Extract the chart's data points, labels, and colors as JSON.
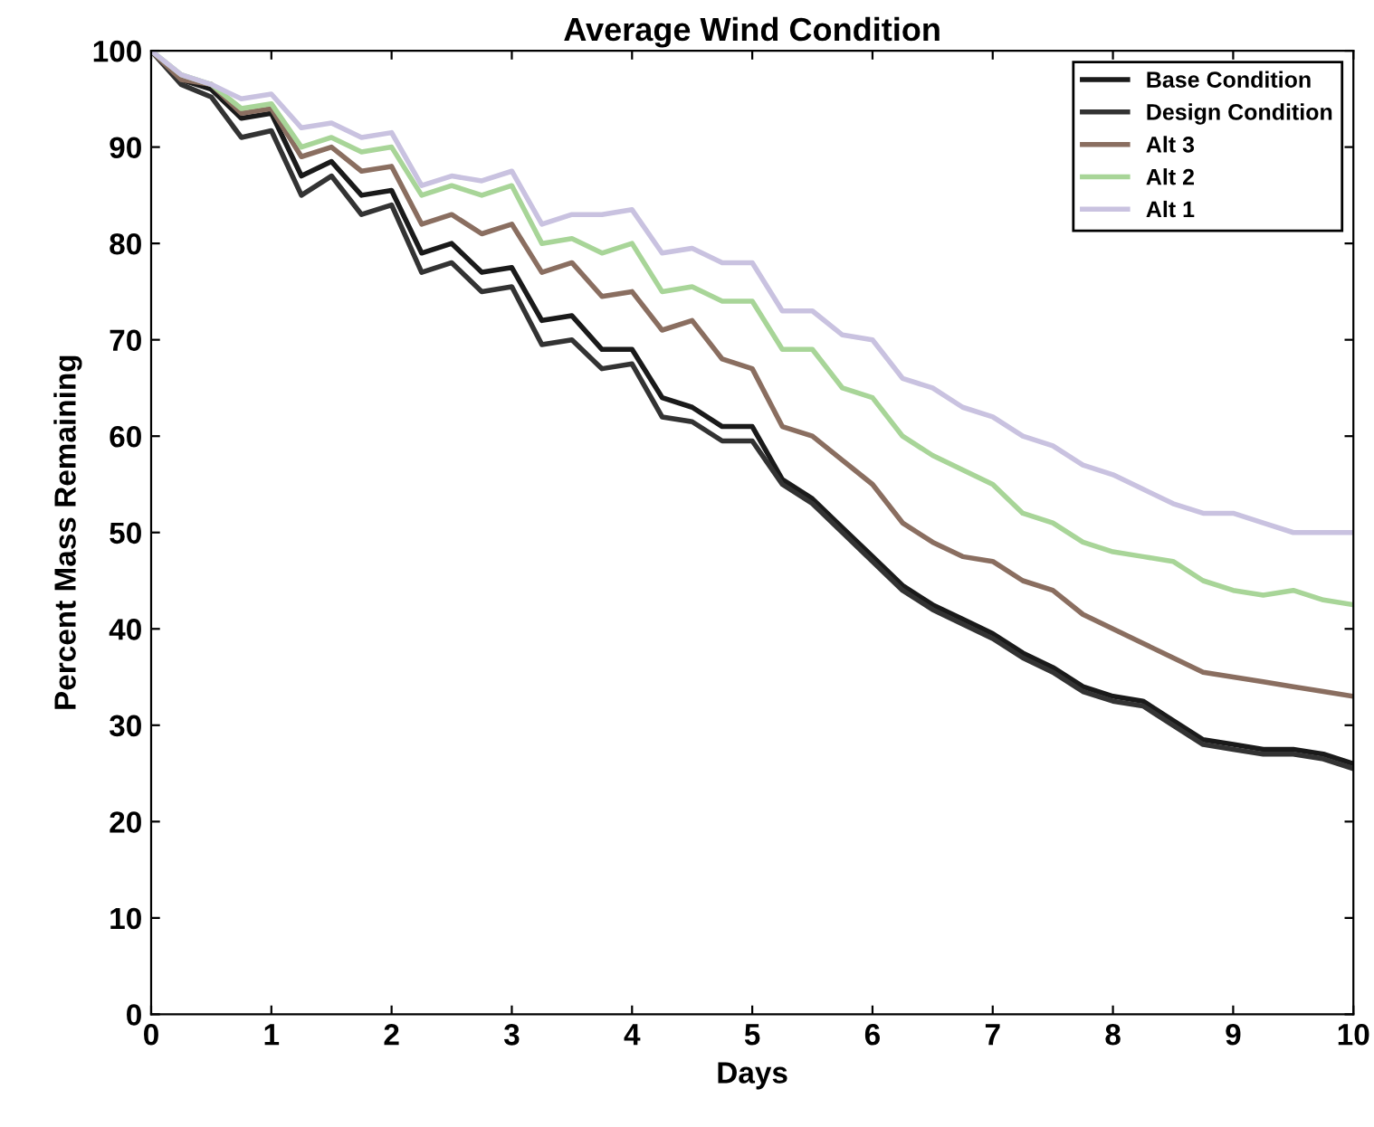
{
  "chart_data": {
    "type": "line",
    "title": "Average Wind Condition",
    "xlabel": "Days",
    "ylabel": "Percent Mass Remaining",
    "x": [
      0,
      0.25,
      0.5,
      0.75,
      1,
      1.25,
      1.5,
      1.75,
      2,
      2.25,
      2.5,
      2.75,
      3,
      3.25,
      3.5,
      3.75,
      4,
      4.25,
      4.5,
      4.75,
      5,
      5.25,
      5.5,
      5.75,
      6,
      6.25,
      6.5,
      6.75,
      7,
      7.25,
      7.5,
      7.75,
      8,
      8.25,
      8.5,
      8.75,
      9,
      9.25,
      9.5,
      9.75,
      10
    ],
    "series": [
      {
        "name": "Base Condition",
        "color": "#1a1a1a",
        "values": [
          100,
          97,
          96,
          93,
          93.5,
          87,
          88.5,
          85,
          85.5,
          79,
          80,
          77,
          77.5,
          72,
          72.5,
          69,
          69,
          64,
          63,
          61,
          61,
          55.5,
          53.5,
          50.5,
          47.5,
          44.5,
          42.5,
          41,
          39.5,
          37.5,
          36,
          34,
          33,
          32.5,
          30.5,
          28.5,
          28,
          27.5,
          27.5,
          27,
          26
        ]
      },
      {
        "name": "Design Condition",
        "color": "#333333",
        "values": [
          100,
          96.5,
          95.2,
          91,
          91.7,
          85,
          87,
          83,
          84,
          77,
          78,
          75,
          75.5,
          69.5,
          70,
          67,
          67.5,
          62,
          61.5,
          59.5,
          59.5,
          55,
          53,
          50,
          47,
          44,
          42,
          40.5,
          39,
          37,
          35.5,
          33.5,
          32.5,
          32,
          30,
          28,
          27.5,
          27,
          27,
          26.5,
          25.5
        ]
      },
      {
        "name": "Alt 3",
        "color": "#8a6e60",
        "values": [
          100,
          97,
          96.5,
          93.5,
          94,
          89,
          90,
          87.5,
          88,
          82,
          83,
          81,
          82,
          77,
          78,
          74.5,
          75,
          71,
          72,
          68,
          67,
          61,
          60,
          57.5,
          55,
          51,
          49,
          47.5,
          47,
          45,
          44,
          41.5,
          40,
          38.5,
          37,
          35.5,
          35,
          34.5,
          34,
          33.5,
          33
        ]
      },
      {
        "name": "Alt 2",
        "color": "#a8d598",
        "values": [
          100,
          97.5,
          96.5,
          94,
          94.5,
          90,
          91,
          89.5,
          90,
          85,
          86,
          85,
          86,
          80,
          80.5,
          79,
          80,
          75,
          75.5,
          74,
          74,
          69,
          69,
          65,
          64,
          60,
          58,
          56.5,
          55,
          52,
          51,
          49,
          48,
          47.5,
          47,
          45,
          44,
          43.5,
          44,
          43,
          42.5
        ]
      },
      {
        "name": "Alt 1",
        "color": "#c9c2e0",
        "values": [
          100,
          97.5,
          96.5,
          95,
          95.5,
          92,
          92.5,
          91,
          91.5,
          86,
          87,
          86.5,
          87.5,
          82,
          83,
          83,
          83.5,
          79,
          79.5,
          78,
          78,
          73,
          73,
          70.5,
          70,
          66,
          65,
          63,
          62,
          60,
          59,
          57,
          56,
          54.5,
          53,
          52,
          52,
          51,
          50,
          50,
          50
        ]
      }
    ],
    "xlim": [
      0,
      10
    ],
    "ylim": [
      0,
      100
    ],
    "xticks": [
      0,
      1,
      2,
      3,
      4,
      5,
      6,
      7,
      8,
      9,
      10
    ],
    "yticks": [
      0,
      10,
      20,
      30,
      40,
      50,
      60,
      70,
      80,
      90,
      100
    ],
    "legend": "top right",
    "grid": false,
    "line_style": "solid",
    "marker": "none"
  }
}
